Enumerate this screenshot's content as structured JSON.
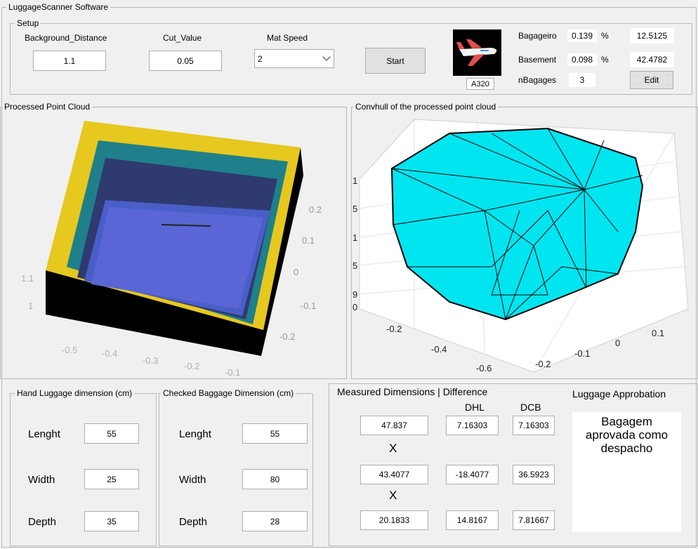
{
  "window": {
    "title": "LuggageScanner Software"
  },
  "setup": {
    "title": "Setup",
    "fields": [
      {
        "label": "Background_Distance",
        "value": "1.1"
      },
      {
        "label": "Cut_Value",
        "value": "0.05"
      },
      {
        "label": "Mat Speed",
        "value": "2"
      }
    ],
    "start_button": "Start",
    "aircraft": "A320",
    "stats": [
      {
        "label": "Bagageiro",
        "value": "0.139",
        "unit": "%",
        "total": "12.5125"
      },
      {
        "label": "Basement",
        "value": "0.098",
        "unit": "%",
        "total": "42.4782"
      }
    ],
    "nbagages": {
      "label": "nBagages",
      "value": "3"
    },
    "edit_button": "Edit"
  },
  "point_cloud": {
    "title": "Processed Point Cloud",
    "ticks": [
      "1.1",
      "1",
      "-0.5",
      "-0.4",
      "-0.3",
      "-0.2",
      "-0.1",
      "0.2",
      "0.1",
      "0",
      "-0.1",
      "-0.2"
    ]
  },
  "convex_hull": {
    "title": "Convhull of the processed point cloud",
    "ticks": [
      "1",
      "5",
      "1",
      "5",
      "9",
      "0",
      "-0.2",
      "-0.4",
      "-0.6",
      "-0.2",
      "-0.1",
      "0",
      "0.1"
    ]
  },
  "hand_luggage": {
    "title": "Hand Luggage dimension (cm)",
    "rows": [
      {
        "label": "Lenght",
        "value": "55"
      },
      {
        "label": "Width",
        "value": "25"
      },
      {
        "label": "Depth",
        "value": "35"
      }
    ]
  },
  "checked_baggage": {
    "title": "Checked Baggage Dimension (cm)",
    "rows": [
      {
        "label": "Lenght",
        "value": "55"
      },
      {
        "label": "Width",
        "value": "80"
      },
      {
        "label": "Depth",
        "value": "28"
      }
    ]
  },
  "measured": {
    "title": "Measured Dimensions | Difference",
    "columns": [
      "DHL",
      "DCB"
    ],
    "separator": "X",
    "rows": [
      {
        "value": "47.837",
        "dhl": "7.16303",
        "dcb": "7.16303"
      },
      {
        "value": "43.4077",
        "dhl": "-18.4077",
        "dcb": "36.5923"
      },
      {
        "value": "20.1833",
        "dhl": "14.8167",
        "dcb": "7.81667"
      }
    ]
  },
  "approbation": {
    "title": "Luggage Approbation",
    "result": "Bagagem aprovada como despacho"
  }
}
